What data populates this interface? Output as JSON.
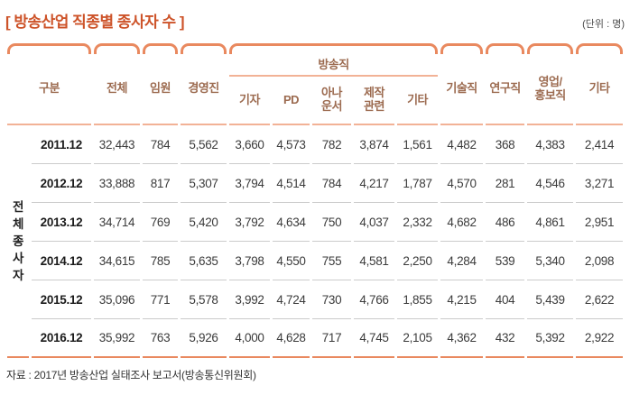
{
  "title": "[ 방송산업 직종별 종사자 수 ]",
  "unit": "(단위 : 명)",
  "colors": {
    "accent_orange": "#e9895f",
    "title_orange": "#cd5329",
    "header_brown": "#9c6b50",
    "header_underline": "#f2b296",
    "row_separator": "#cbcbcb",
    "data_text": "#3b3b3b"
  },
  "table": {
    "row_group_label": "전체종사자",
    "headers": {
      "category": "구분",
      "total": "전체",
      "executives": "임원",
      "management": "경영진",
      "broadcast_group": "방송직",
      "reporter": "기자",
      "pd": "PD",
      "announcer_l1": "아나",
      "announcer_l2": "운서",
      "production_l1": "제작",
      "production_l2": "관련",
      "broadcast_etc": "기타",
      "technical": "기술직",
      "research": "연구직",
      "sales_pr_l1": "영업/",
      "sales_pr_l2": "홍보직",
      "etc": "기타"
    },
    "rows": [
      {
        "date": "2011.12",
        "values": [
          "32,443",
          "784",
          "5,562",
          "3,660",
          "4,573",
          "782",
          "3,874",
          "1,561",
          "4,482",
          "368",
          "4,383",
          "2,414"
        ]
      },
      {
        "date": "2012.12",
        "values": [
          "33,888",
          "817",
          "5,307",
          "3,794",
          "4,514",
          "784",
          "4,217",
          "1,787",
          "4,570",
          "281",
          "4,546",
          "3,271"
        ]
      },
      {
        "date": "2013.12",
        "values": [
          "34,714",
          "769",
          "5,420",
          "3,792",
          "4,634",
          "750",
          "4,037",
          "2,332",
          "4,682",
          "486",
          "4,861",
          "2,951"
        ]
      },
      {
        "date": "2014.12",
        "values": [
          "34,615",
          "785",
          "5,635",
          "3,798",
          "4,550",
          "755",
          "4,581",
          "2,250",
          "4,284",
          "539",
          "5,340",
          "2,098"
        ]
      },
      {
        "date": "2015.12",
        "values": [
          "35,096",
          "771",
          "5,578",
          "3,992",
          "4,724",
          "730",
          "4,766",
          "1,855",
          "4,215",
          "404",
          "5,439",
          "2,622"
        ]
      },
      {
        "date": "2016.12",
        "values": [
          "35,992",
          "763",
          "5,926",
          "4,000",
          "4,628",
          "717",
          "4,745",
          "2,105",
          "4,362",
          "432",
          "5,392",
          "2,922"
        ]
      }
    ]
  },
  "source": "자료 : 2017년 방송산업 실태조사 보고서(방송통신위원회)"
}
